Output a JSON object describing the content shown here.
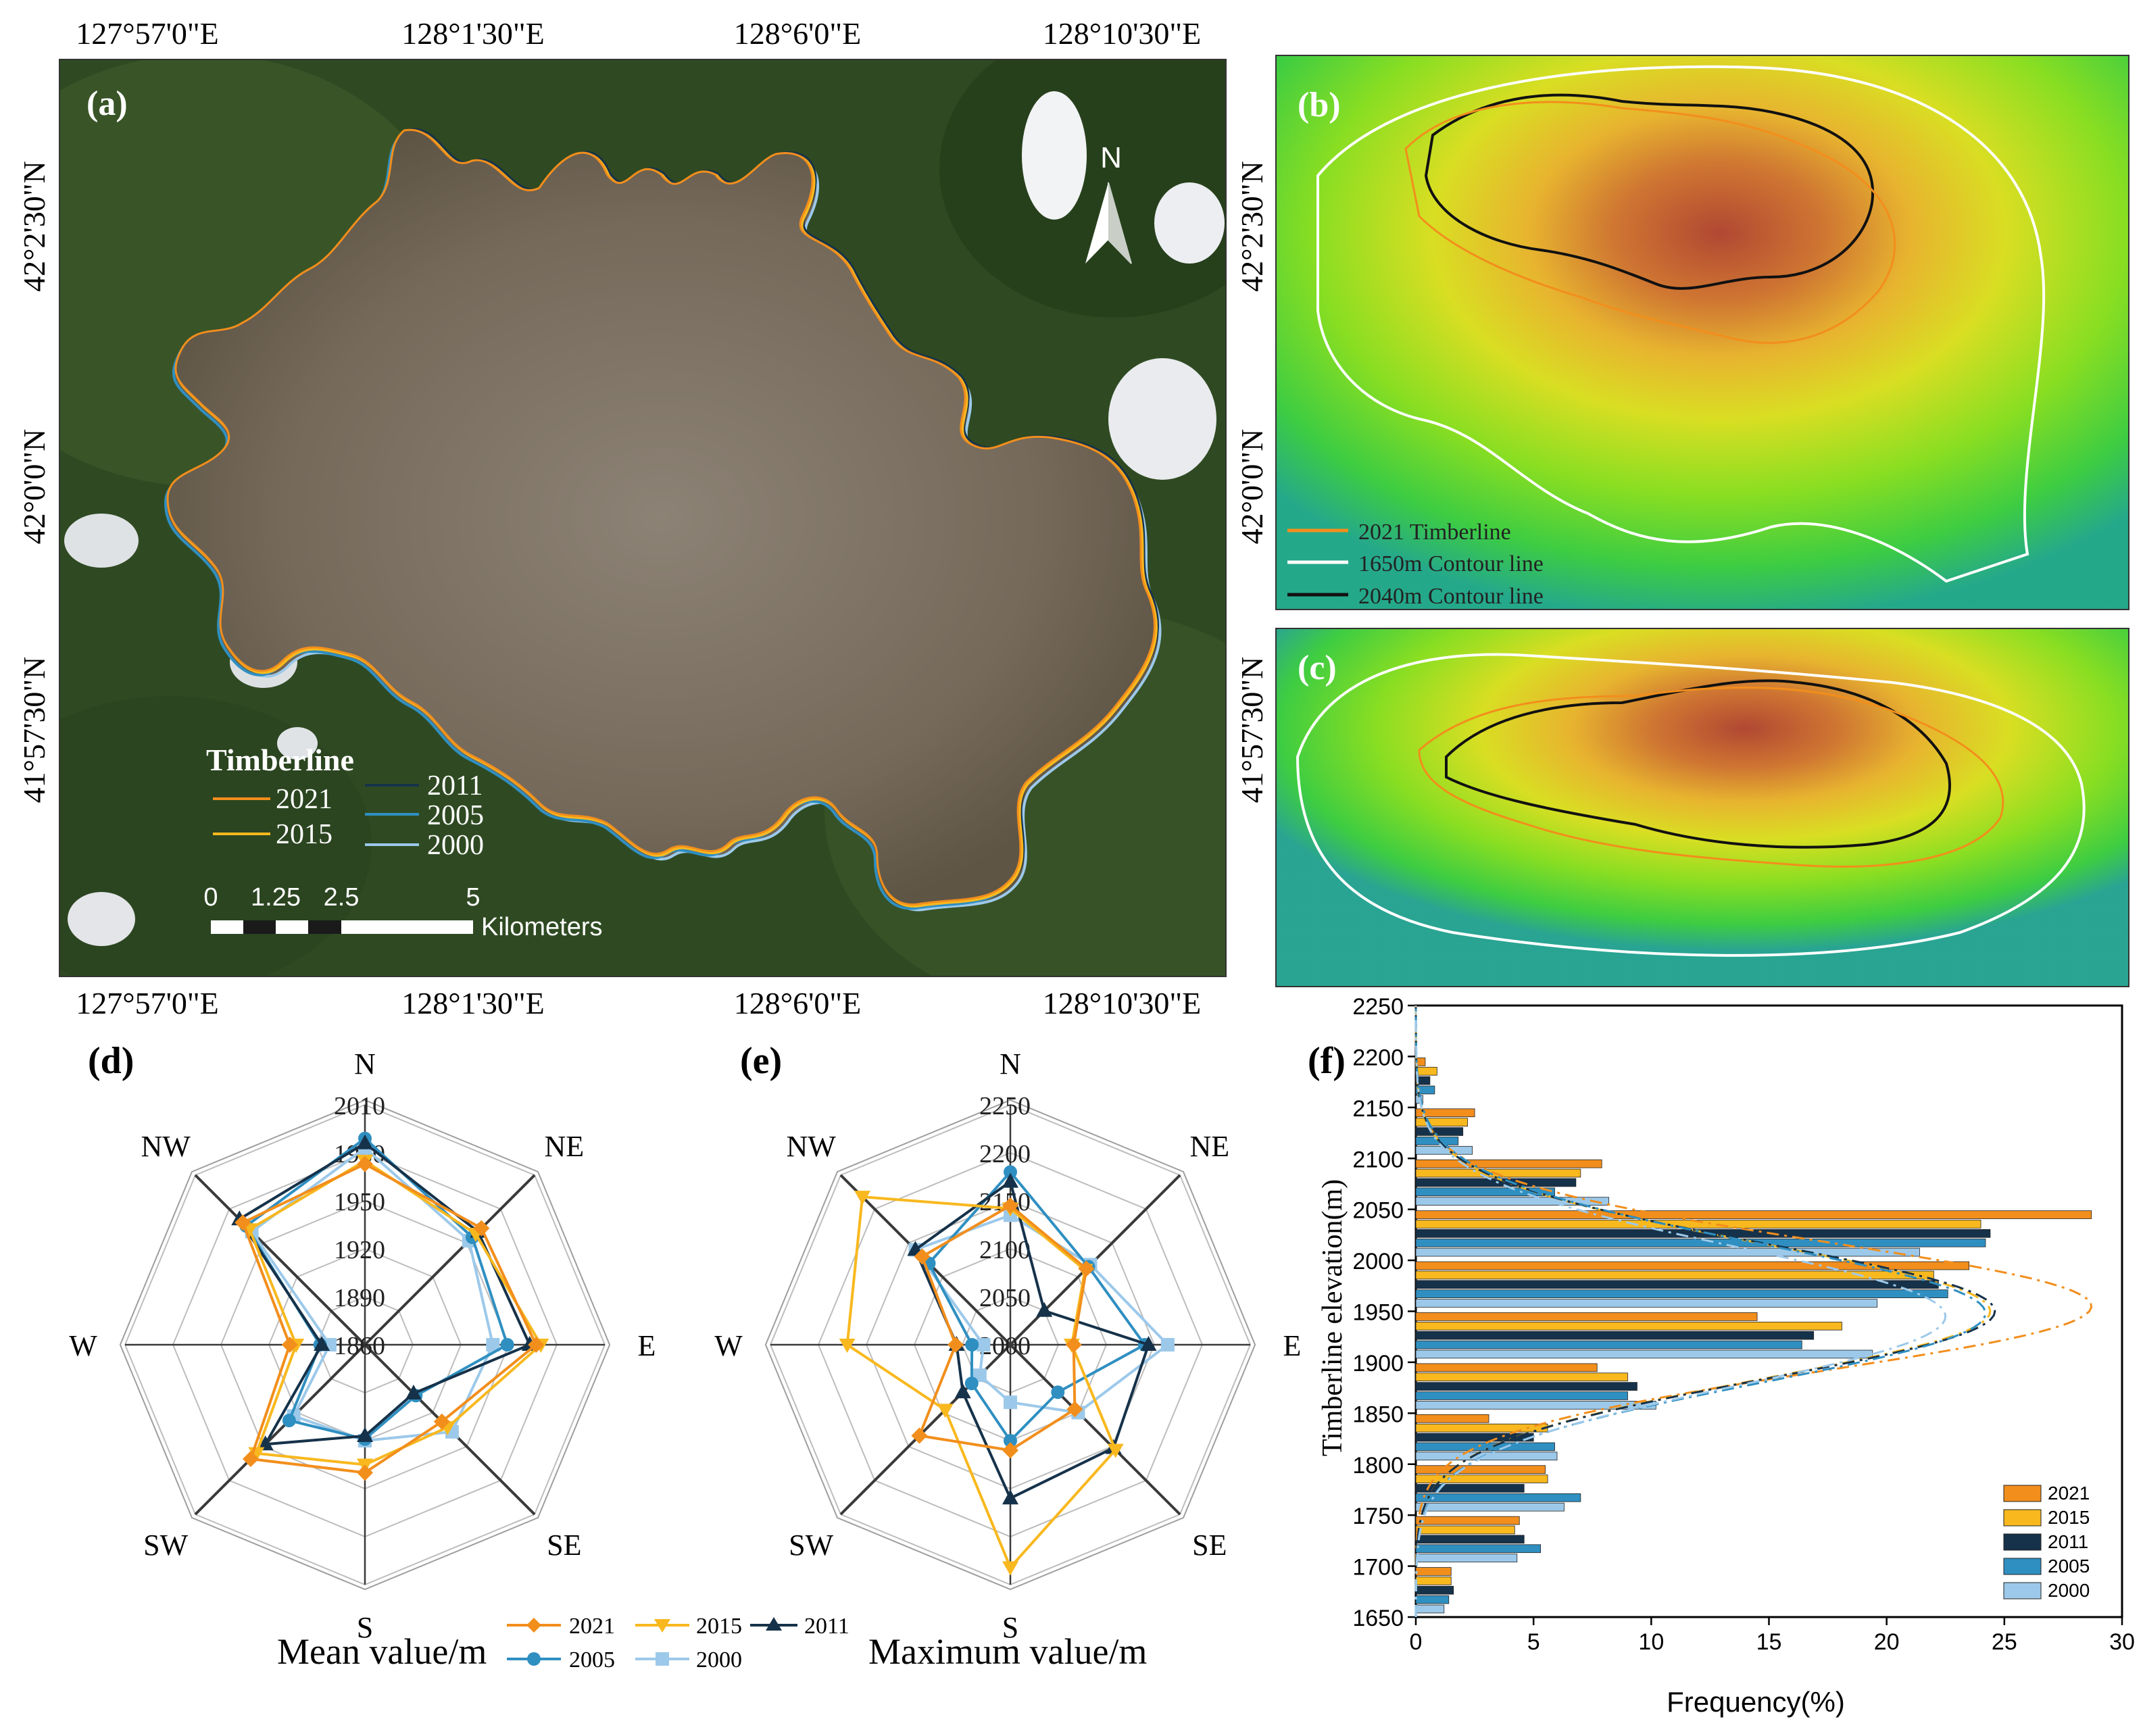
{
  "colors": {
    "y2021": "#f28e1c",
    "y2015": "#f8b81e",
    "y2011": "#16324a",
    "y2005": "#2f8fc1",
    "y2000": "#9cc9ea",
    "white": "#ffffff"
  },
  "map_a": {
    "label": "(a)",
    "lon_labels": [
      "127°57'0\"E",
      "128°1'30\"E",
      "128°6'0\"E",
      "128°10'30\"E"
    ],
    "lat_labels": [
      "42°2'30\"N",
      "42°0'0\"N",
      "41°57'30\"N"
    ],
    "north": "N",
    "legend_title": "Timberline",
    "legend_years": [
      "2021",
      "2011",
      "2015",
      "2005",
      "2000"
    ],
    "scale_ticks": [
      "0",
      "1.25",
      "2.5",
      "5"
    ],
    "scale_unit": "Kilometers"
  },
  "map_b": {
    "label": "(b)",
    "legend": [
      "2021 Timberline",
      "1650m Contour line",
      "2040m Contour line"
    ]
  },
  "map_c": {
    "label": "(c)"
  },
  "chart_data": [
    {
      "type": "radar",
      "panel": "(d)",
      "caption": "Mean value/m",
      "directions": [
        "N",
        "NE",
        "E",
        "SE",
        "S",
        "SW",
        "W",
        "NW"
      ],
      "rlim": [
        1860,
        2010
      ],
      "rticks": [
        1860,
        1890,
        1920,
        1950,
        1980,
        2010
      ],
      "series": [
        {
          "name": "2021",
          "values": [
            1973,
            1963,
            1967,
            1928,
            1940,
            1961,
            1907,
            1968
          ]
        },
        {
          "name": "2015",
          "values": [
            1975,
            1958,
            1970,
            1933,
            1935,
            1956,
            1903,
            1962
          ]
        },
        {
          "name": "2011",
          "values": [
            1986,
            1960,
            1963,
            1903,
            1917,
            1948,
            1887,
            1971
          ]
        },
        {
          "name": "2005",
          "values": [
            1989,
            1955,
            1949,
            1905,
            1919,
            1927,
            1888,
            1965
          ]
        },
        {
          "name": "2000",
          "values": [
            1983,
            1952,
            1940,
            1937,
            1920,
            1923,
            1882,
            1960
          ]
        }
      ]
    },
    {
      "type": "radar",
      "panel": "(e)",
      "caption": "Maximum value/m",
      "directions": [
        "N",
        "NE",
        "E",
        "SE",
        "S",
        "SW",
        "W",
        "NW"
      ],
      "rlim": [
        2000,
        2250
      ],
      "rticks": [
        2000,
        2050,
        2100,
        2150,
        2200,
        2250
      ],
      "series": [
        {
          "name": "2021",
          "values": [
            2145,
            2112,
            2066,
            2095,
            2110,
            2134,
            2057,
            2130
          ]
        },
        {
          "name": "2015",
          "values": [
            2142,
            2110,
            2064,
            2155,
            2232,
            2096,
            2170,
            2218
          ]
        },
        {
          "name": "2011",
          "values": [
            2170,
            2050,
            2144,
            2152,
            2160,
            2070,
            2056,
            2140
          ]
        },
        {
          "name": "2005",
          "values": [
            2180,
            2115,
            2140,
            2070,
            2100,
            2057,
            2040,
            2120
          ]
        },
        {
          "name": "2000",
          "values": [
            2135,
            2118,
            2164,
            2100,
            2060,
            2045,
            2028,
            2140
          ]
        }
      ]
    },
    {
      "type": "horizontal-bar",
      "panel": "(f)",
      "ylabel": "Timberline elevation(m)",
      "xlabel": "Frequency(%)",
      "xlim": [
        0,
        30
      ],
      "xticks": [
        0,
        5,
        10,
        15,
        20,
        25,
        30
      ],
      "ylim": [
        1650,
        2250
      ],
      "yticks": [
        1650,
        1700,
        1750,
        1800,
        1850,
        1900,
        1950,
        2000,
        2050,
        2100,
        2150,
        2200,
        2250
      ],
      "bins": [
        1675,
        1725,
        1775,
        1825,
        1875,
        1925,
        1975,
        2025,
        2075,
        2125,
        2175
      ],
      "series": [
        {
          "name": "2021",
          "values": [
            1.5,
            4.4,
            5.5,
            3.1,
            7.7,
            14.5,
            23.5,
            28.7,
            7.9,
            2.5,
            0.4
          ]
        },
        {
          "name": "2015",
          "values": [
            1.5,
            4.2,
            5.6,
            5.6,
            9.0,
            18.1,
            22.0,
            24.0,
            7.0,
            2.2,
            0.9
          ]
        },
        {
          "name": "2011",
          "values": [
            1.6,
            4.6,
            4.6,
            5.0,
            9.4,
            16.9,
            22.2,
            24.4,
            6.8,
            2.0,
            0.6
          ]
        },
        {
          "name": "2005",
          "values": [
            1.4,
            5.3,
            7.0,
            5.9,
            9.0,
            16.4,
            22.6,
            24.2,
            5.9,
            1.8,
            0.8
          ]
        },
        {
          "name": "2000",
          "values": [
            1.2,
            4.3,
            6.3,
            6.0,
            10.2,
            19.4,
            19.6,
            21.4,
            8.2,
            2.4,
            0.3
          ]
        }
      ],
      "fit": [
        {
          "name": "2021",
          "mean": 1955,
          "sd": 63,
          "peak": 28.7
        },
        {
          "name": "2015",
          "mean": 1950,
          "sd": 66,
          "peak": 24.4
        },
        {
          "name": "2011",
          "mean": 1950,
          "sd": 66,
          "peak": 24.6
        },
        {
          "name": "2005",
          "mean": 1948,
          "sd": 68,
          "peak": 24.2
        },
        {
          "name": "2000",
          "mean": 1945,
          "sd": 68,
          "peak": 22.5
        }
      ]
    }
  ]
}
